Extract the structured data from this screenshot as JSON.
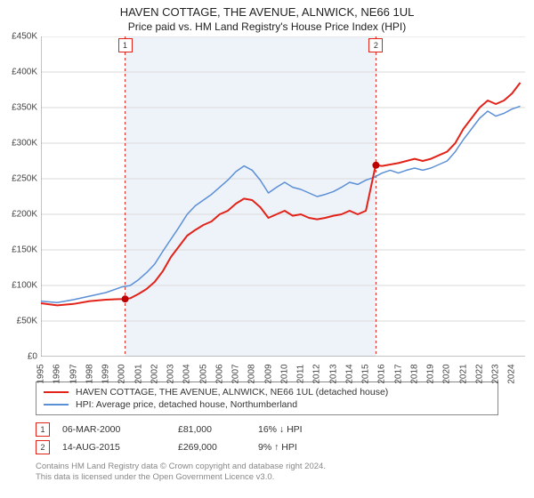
{
  "title": "HAVEN COTTAGE, THE AVENUE, ALNWICK, NE66 1UL",
  "subtitle": "Price paid vs. HM Land Registry's House Price Index (HPI)",
  "chart": {
    "type": "line",
    "background_color": "#ffffff",
    "plot_band_color": "#eef3fa",
    "grid_color": "#d9d9d9",
    "axis_color": "#888888",
    "x_years": [
      1995,
      1996,
      1997,
      1998,
      1999,
      2000,
      2001,
      2002,
      2003,
      2004,
      2005,
      2006,
      2007,
      2008,
      2009,
      2010,
      2011,
      2012,
      2013,
      2014,
      2015,
      2016,
      2017,
      2018,
      2019,
      2020,
      2021,
      2022,
      2023,
      2024
    ],
    "ylim": [
      0,
      450000
    ],
    "ytick_step": 50000,
    "yticks": [
      "£0",
      "£50K",
      "£100K",
      "£150K",
      "£200K",
      "£250K",
      "£300K",
      "£350K",
      "£400K",
      "£450K"
    ],
    "series": [
      {
        "name": "property",
        "label": "HAVEN COTTAGE, THE AVENUE, ALNWICK, NE66 1UL (detached house)",
        "color": "#e2231a",
        "line_width": 2,
        "data": [
          [
            1995,
            75000
          ],
          [
            1996,
            72000
          ],
          [
            1997,
            74000
          ],
          [
            1998,
            78000
          ],
          [
            1999,
            80000
          ],
          [
            2000,
            81000
          ],
          [
            2000.5,
            82000
          ],
          [
            2001,
            88000
          ],
          [
            2001.5,
            95000
          ],
          [
            2002,
            105000
          ],
          [
            2002.5,
            120000
          ],
          [
            2003,
            140000
          ],
          [
            2003.5,
            155000
          ],
          [
            2004,
            170000
          ],
          [
            2004.5,
            178000
          ],
          [
            2005,
            185000
          ],
          [
            2005.5,
            190000
          ],
          [
            2006,
            200000
          ],
          [
            2006.5,
            205000
          ],
          [
            2007,
            215000
          ],
          [
            2007.5,
            222000
          ],
          [
            2008,
            220000
          ],
          [
            2008.5,
            210000
          ],
          [
            2009,
            195000
          ],
          [
            2009.5,
            200000
          ],
          [
            2010,
            205000
          ],
          [
            2010.5,
            198000
          ],
          [
            2011,
            200000
          ],
          [
            2011.5,
            195000
          ],
          [
            2012,
            193000
          ],
          [
            2012.5,
            195000
          ],
          [
            2013,
            198000
          ],
          [
            2013.5,
            200000
          ],
          [
            2014,
            205000
          ],
          [
            2014.5,
            200000
          ],
          [
            2015,
            205000
          ],
          [
            2015.6,
            269000
          ],
          [
            2016,
            268000
          ],
          [
            2016.5,
            270000
          ],
          [
            2017,
            272000
          ],
          [
            2017.5,
            275000
          ],
          [
            2018,
            278000
          ],
          [
            2018.5,
            275000
          ],
          [
            2019,
            278000
          ],
          [
            2019.5,
            283000
          ],
          [
            2020,
            288000
          ],
          [
            2020.5,
            300000
          ],
          [
            2021,
            320000
          ],
          [
            2021.5,
            335000
          ],
          [
            2022,
            350000
          ],
          [
            2022.5,
            360000
          ],
          [
            2023,
            355000
          ],
          [
            2023.5,
            360000
          ],
          [
            2024,
            370000
          ],
          [
            2024.5,
            385000
          ]
        ]
      },
      {
        "name": "hpi",
        "label": "HPI: Average price, detached house, Northumberland",
        "color": "#5b8fd6",
        "line_width": 1.5,
        "data": [
          [
            1995,
            78000
          ],
          [
            1996,
            76000
          ],
          [
            1997,
            80000
          ],
          [
            1998,
            85000
          ],
          [
            1999,
            90000
          ],
          [
            2000,
            98000
          ],
          [
            2000.5,
            100000
          ],
          [
            2001,
            108000
          ],
          [
            2001.5,
            118000
          ],
          [
            2002,
            130000
          ],
          [
            2002.5,
            148000
          ],
          [
            2003,
            165000
          ],
          [
            2003.5,
            182000
          ],
          [
            2004,
            200000
          ],
          [
            2004.5,
            212000
          ],
          [
            2005,
            220000
          ],
          [
            2005.5,
            228000
          ],
          [
            2006,
            238000
          ],
          [
            2006.5,
            248000
          ],
          [
            2007,
            260000
          ],
          [
            2007.5,
            268000
          ],
          [
            2008,
            262000
          ],
          [
            2008.5,
            248000
          ],
          [
            2009,
            230000
          ],
          [
            2009.5,
            238000
          ],
          [
            2010,
            245000
          ],
          [
            2010.5,
            238000
          ],
          [
            2011,
            235000
          ],
          [
            2011.5,
            230000
          ],
          [
            2012,
            225000
          ],
          [
            2012.5,
            228000
          ],
          [
            2013,
            232000
          ],
          [
            2013.5,
            238000
          ],
          [
            2014,
            245000
          ],
          [
            2014.5,
            242000
          ],
          [
            2015,
            248000
          ],
          [
            2015.5,
            252000
          ],
          [
            2016,
            258000
          ],
          [
            2016.5,
            262000
          ],
          [
            2017,
            258000
          ],
          [
            2017.5,
            262000
          ],
          [
            2018,
            265000
          ],
          [
            2018.5,
            262000
          ],
          [
            2019,
            265000
          ],
          [
            2019.5,
            270000
          ],
          [
            2020,
            275000
          ],
          [
            2020.5,
            288000
          ],
          [
            2021,
            305000
          ],
          [
            2021.5,
            320000
          ],
          [
            2022,
            335000
          ],
          [
            2022.5,
            345000
          ],
          [
            2023,
            338000
          ],
          [
            2023.5,
            342000
          ],
          [
            2024,
            348000
          ],
          [
            2024.5,
            352000
          ]
        ]
      }
    ],
    "markers": [
      {
        "x": 2000.18,
        "y": 81000,
        "badge": "1",
        "badge_color": "#e2231a",
        "dash_color": "#e2231a"
      },
      {
        "x": 2015.62,
        "y": 269000,
        "badge": "2",
        "badge_color": "#e2231a",
        "dash_color": "#e2231a"
      }
    ],
    "marker_dot_color": "#c00000",
    "plot_bands": [
      {
        "from": 2000.18,
        "to": 2015.62
      }
    ],
    "label_fontsize": 10
  },
  "legend": {
    "items": [
      {
        "color": "#e2231a",
        "label": "HAVEN COTTAGE, THE AVENUE, ALNWICK, NE66 1UL (detached house)"
      },
      {
        "color": "#5b8fd6",
        "label": "HPI: Average price, detached house, Northumberland"
      }
    ]
  },
  "sales": [
    {
      "badge": "1",
      "badge_color": "#e2231a",
      "date": "06-MAR-2000",
      "price": "£81,000",
      "diff": "16% ↓ HPI"
    },
    {
      "badge": "2",
      "badge_color": "#e2231a",
      "date": "14-AUG-2015",
      "price": "£269,000",
      "diff": "9% ↑ HPI"
    }
  ],
  "footer": {
    "line1": "Contains HM Land Registry data © Crown copyright and database right 2024.",
    "line2": "This data is licensed under the Open Government Licence v3.0."
  }
}
